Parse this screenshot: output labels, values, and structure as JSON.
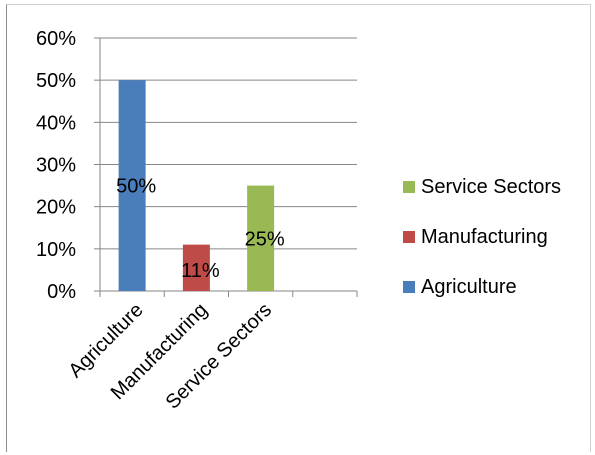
{
  "chart_data": {
    "type": "bar",
    "categories": [
      "Agriculture",
      "Manufacturing",
      "Service Sectors"
    ],
    "values": [
      0.5,
      0.11,
      0.25
    ],
    "data_labels": [
      "50%",
      "11%",
      "25%"
    ],
    "colors": [
      "#4a7ebb",
      "#be4b48",
      "#98b954"
    ],
    "ylim": [
      0,
      0.6
    ],
    "yticks": [
      0,
      0.1,
      0.2,
      0.3,
      0.4,
      0.5,
      0.6
    ],
    "ytick_labels": [
      "0%",
      "10%",
      "20%",
      "30%",
      "40%",
      "50%",
      "60%"
    ],
    "grid": true,
    "legend": {
      "placement": "right",
      "entries": [
        {
          "label": "Service Sectors",
          "color": "#98b954"
        },
        {
          "label": "Manufacturing",
          "color": "#be4b48"
        },
        {
          "label": "Agriculture",
          "color": "#4a7ebb"
        }
      ]
    }
  }
}
